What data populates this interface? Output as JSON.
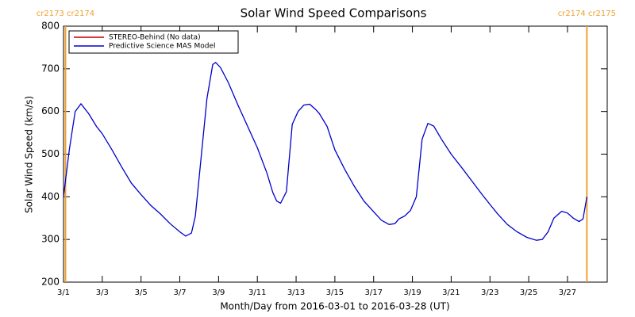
{
  "chart_data": {
    "type": "line",
    "title": "Solar Wind Speed Comparisons",
    "xlabel": "Month/Day from 2016-03-01 to 2016-03-28 (UT)",
    "ylabel": "Solar Wind Speed (km/s)",
    "x": [
      0,
      0.3,
      0.6,
      0.9,
      1.3,
      1.7,
      2.0,
      2.5,
      3.0,
      3.5,
      4.0,
      4.5,
      5.0,
      5.5,
      6.0,
      6.3,
      6.6,
      6.8,
      7.4,
      7.7,
      7.85,
      8.1,
      8.5,
      9.0,
      9.5,
      10.0,
      10.5,
      10.8,
      11.0,
      11.2,
      11.5,
      11.8,
      12.1,
      12.4,
      12.7,
      13.0,
      13.2,
      13.6,
      14.0,
      14.5,
      15.0,
      15.5,
      16.0,
      16.4,
      16.8,
      17.1,
      17.3,
      17.6,
      17.9,
      18.2,
      18.5,
      18.8,
      19.1,
      19.5,
      20.0,
      20.6,
      21.1,
      21.6,
      22.0,
      22.4,
      22.9,
      23.4,
      23.9,
      24.4,
      24.7,
      25.0,
      25.3,
      25.7,
      26.0,
      26.3,
      26.6,
      26.8,
      27.0
    ],
    "series": [
      {
        "name": "STEREO-Behind (No data)",
        "color": "#c00000",
        "values": [
          null,
          null,
          null,
          null,
          null,
          null,
          null,
          null,
          null,
          null,
          null,
          null,
          null,
          null,
          null,
          null,
          null,
          null,
          null,
          null,
          null,
          null,
          null,
          null,
          null,
          null,
          null,
          null,
          null,
          null,
          null,
          null,
          null,
          null,
          null,
          null,
          null,
          null,
          null,
          null,
          null,
          null,
          null,
          null,
          null,
          null,
          null,
          null,
          null,
          null,
          null,
          null,
          null,
          null,
          null,
          null,
          null,
          null,
          null,
          null,
          null,
          null,
          null,
          null,
          null,
          null,
          null,
          null,
          null,
          null,
          null,
          null,
          null
        ]
      },
      {
        "name": "Predictive Science MAS Model",
        "color": "#0000cc",
        "values": [
          400,
          510,
          600,
          618,
          595,
          565,
          548,
          510,
          470,
          432,
          405,
          380,
          360,
          337,
          318,
          308,
          315,
          355,
          630,
          710,
          715,
          703,
          668,
          615,
          565,
          515,
          455,
          410,
          390,
          385,
          412,
          570,
          600,
          615,
          617,
          605,
          595,
          565,
          510,
          465,
          425,
          390,
          365,
          345,
          335,
          337,
          348,
          355,
          368,
          400,
          535,
          572,
          566,
          535,
          500,
          465,
          435,
          405,
          382,
          360,
          335,
          318,
          305,
          298,
          300,
          318,
          350,
          366,
          362,
          350,
          342,
          348,
          400
        ]
      }
    ],
    "xlim": [
      0,
      28.05
    ],
    "xticks": [
      {
        "value": 0,
        "label": "3/1"
      },
      {
        "value": 2,
        "label": "3/3"
      },
      {
        "value": 4,
        "label": "3/5"
      },
      {
        "value": 6,
        "label": "3/7"
      },
      {
        "value": 8,
        "label": "3/9"
      },
      {
        "value": 10,
        "label": "3/11"
      },
      {
        "value": 12,
        "label": "3/13"
      },
      {
        "value": 14,
        "label": "3/15"
      },
      {
        "value": 16,
        "label": "3/17"
      },
      {
        "value": 18,
        "label": "3/19"
      },
      {
        "value": 20,
        "label": "3/21"
      },
      {
        "value": 22,
        "label": "3/23"
      },
      {
        "value": 24,
        "label": "3/25"
      },
      {
        "value": 26,
        "label": "3/27"
      }
    ],
    "ylim": [
      200,
      800
    ],
    "yticks": [
      200,
      300,
      400,
      500,
      600,
      700,
      800
    ],
    "markers_color": "#f0a030",
    "markers": [
      {
        "x": 0.1,
        "label": "cr2173 cr2174"
      },
      {
        "x": 27,
        "label": "cr2174 cr2175"
      }
    ],
    "legend": "upper left"
  }
}
